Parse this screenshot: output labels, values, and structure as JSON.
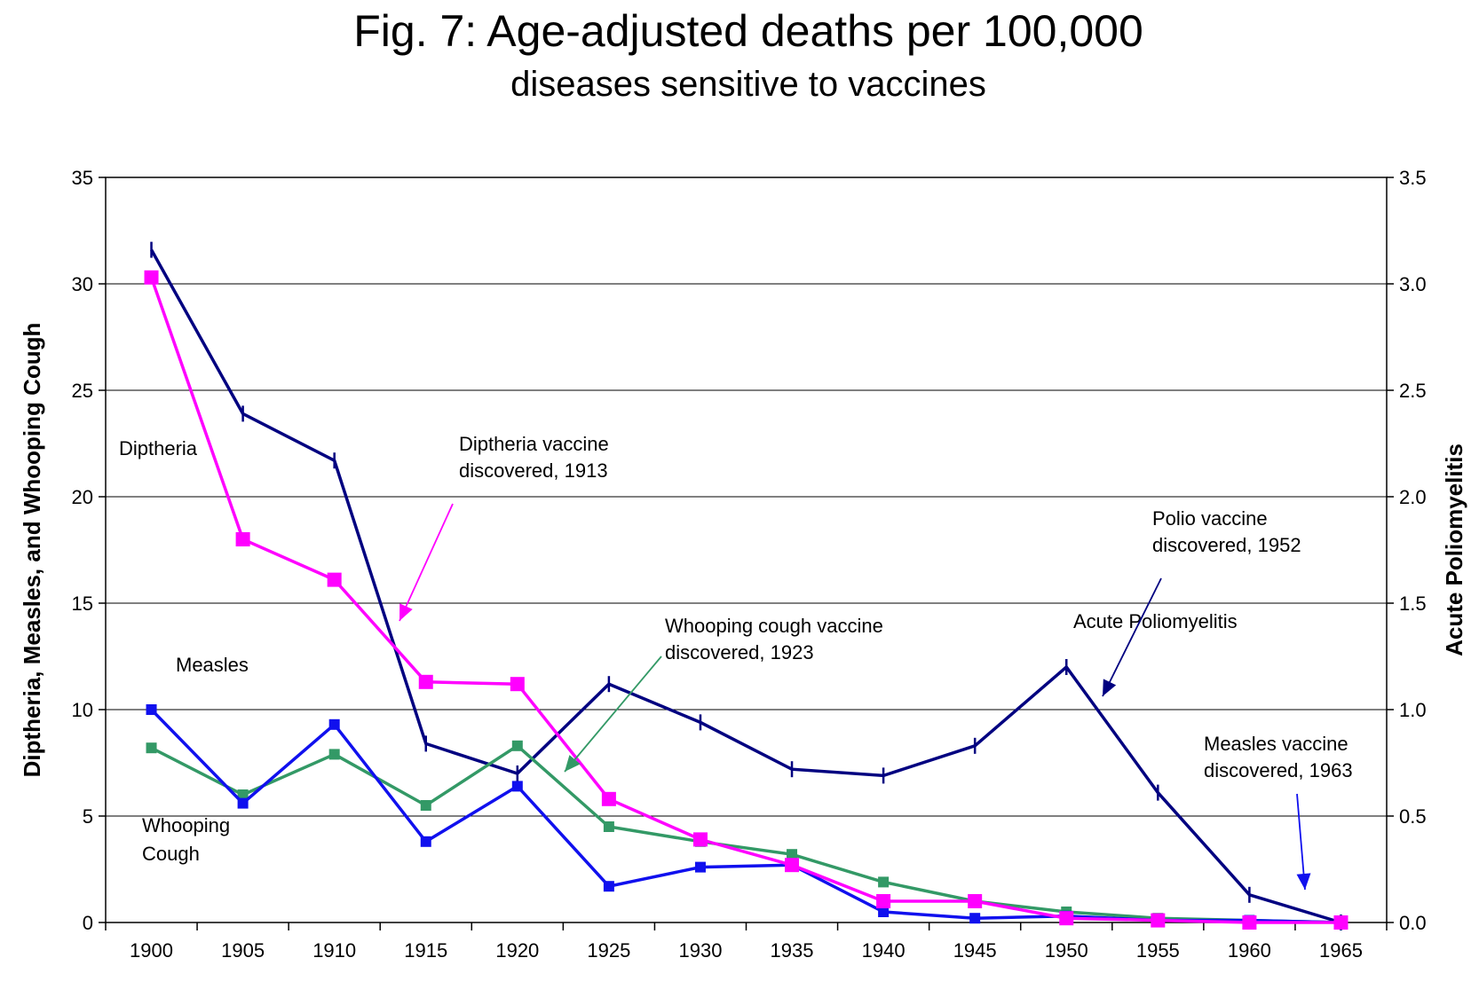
{
  "chart_data": {
    "type": "line",
    "title": "Fig. 7: Age-adjusted deaths per 100,000",
    "subtitle": "diseases sensitive to vaccines",
    "ylabel": "Diptheria, Measles, and Whooping Cough",
    "y2label": "Acute Poliomyelitis",
    "x": [
      1900,
      1905,
      1910,
      1915,
      1920,
      1925,
      1930,
      1935,
      1940,
      1945,
      1950,
      1955,
      1960,
      1965
    ],
    "ylim": [
      0,
      35
    ],
    "y_ticks": [
      0,
      5,
      10,
      15,
      20,
      25,
      30,
      35
    ],
    "y2lim": [
      0,
      3.5
    ],
    "y2_ticks": [
      "0.0",
      "0.5",
      "1.0",
      "1.5",
      "2.0",
      "2.5",
      "3.0",
      "3.5"
    ],
    "grid": true,
    "series": [
      {
        "name": "Diptheria",
        "axis": "left",
        "color": "#ff00ff",
        "marker": "square-large",
        "values": [
          30.3,
          18.0,
          16.1,
          11.3,
          11.2,
          5.8,
          3.9,
          2.7,
          1.0,
          1.0,
          0.2,
          0.1,
          0.0,
          0.0
        ]
      },
      {
        "name": "Measles",
        "axis": "left",
        "color": "#1010ee",
        "marker": "square",
        "values": [
          10.0,
          5.6,
          9.3,
          3.8,
          6.4,
          1.7,
          2.6,
          2.7,
          0.5,
          0.2,
          0.3,
          0.1,
          0.1,
          0.0
        ]
      },
      {
        "name": "Whooping Cough",
        "axis": "left",
        "color": "#339966",
        "marker": "square",
        "values": [
          8.2,
          6.0,
          7.9,
          5.5,
          8.3,
          4.5,
          3.8,
          3.2,
          1.9,
          1.0,
          0.5,
          0.2,
          0.1,
          0.0
        ]
      },
      {
        "name": "Acute Poliomyelitis",
        "axis": "right",
        "color": "#000080",
        "marker": "tick",
        "values": [
          3.16,
          2.39,
          2.17,
          0.84,
          0.7,
          1.12,
          0.94,
          0.72,
          0.69,
          0.83,
          1.2,
          0.61,
          0.13,
          0.0
        ]
      }
    ],
    "series_labels": [
      {
        "text": "Diptheria"
      },
      {
        "text": "Measles"
      },
      {
        "text": "Whooping"
      },
      {
        "text": "Cough"
      },
      {
        "text": "Acute Poliomyelitis"
      }
    ],
    "annotations": [
      {
        "lines": [
          "Diptheria vaccine",
          "discovered, 1913"
        ],
        "color": "#ff00ff"
      },
      {
        "lines": [
          "Whooping cough vaccine",
          "discovered, 1923"
        ],
        "color": "#339966"
      },
      {
        "lines": [
          "Polio vaccine",
          "discovered, 1952"
        ],
        "color": "#000080"
      },
      {
        "lines": [
          "Measles vaccine",
          "discovered, 1963"
        ],
        "color": "#1010ee"
      }
    ]
  }
}
